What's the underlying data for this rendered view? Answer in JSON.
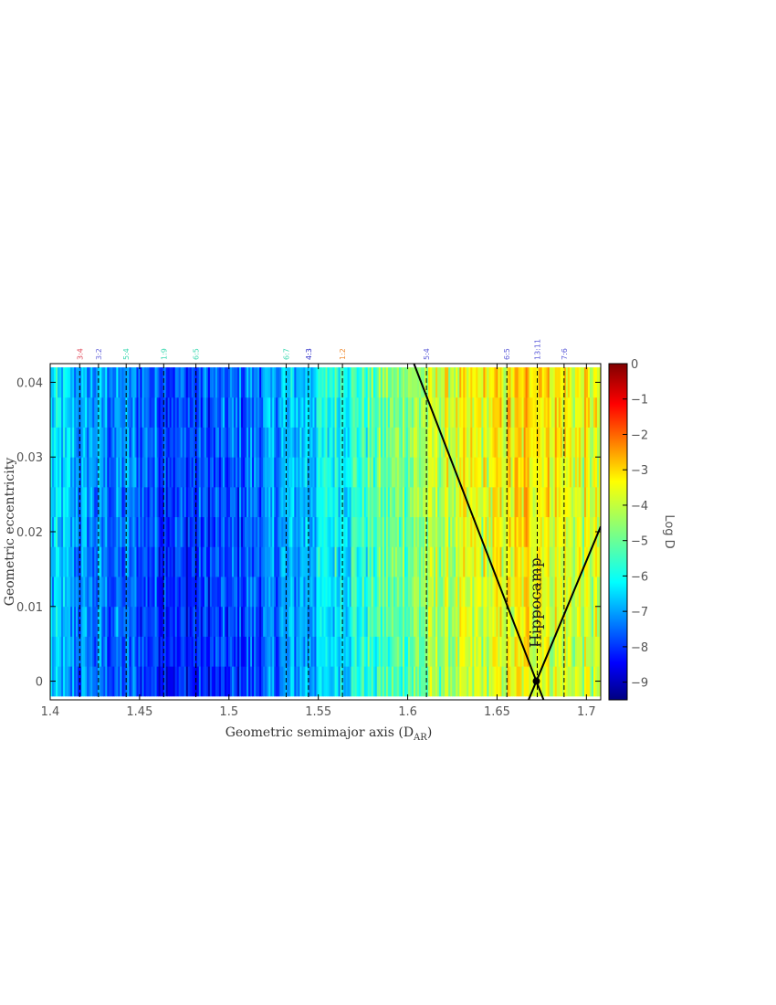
{
  "chart_data": {
    "type": "heatmap",
    "title": "",
    "xlabel": "Geometric semimajor axis (D",
    "xlabel_sub": "AR",
    "xlabel_close": ")",
    "ylabel": "Geometric eccentricity",
    "xlim": [
      1.4,
      1.708
    ],
    "ylim": [
      -0.0025,
      0.0425
    ],
    "x_ticks": [
      {
        "value": 1.4,
        "label": "1.4"
      },
      {
        "value": 1.45,
        "label": "1.45"
      },
      {
        "value": 1.5,
        "label": "1.5"
      },
      {
        "value": 1.55,
        "label": "1.55"
      },
      {
        "value": 1.6,
        "label": "1.6"
      },
      {
        "value": 1.65,
        "label": "1.65"
      },
      {
        "value": 1.7,
        "label": "1.7"
      }
    ],
    "y_ticks": [
      {
        "value": 0,
        "label": "0"
      },
      {
        "value": 0.01,
        "label": "0.01"
      },
      {
        "value": 0.02,
        "label": "0.02"
      },
      {
        "value": 0.03,
        "label": "0.03"
      },
      {
        "value": 0.04,
        "label": "0.04"
      }
    ],
    "eccentricity_rows": [
      0,
      0.004,
      0.008,
      0.012,
      0.016,
      0.02,
      0.024,
      0.028,
      0.032,
      0.036,
      0.04
    ],
    "colorbar": {
      "label": "Log D",
      "range": [
        -9.5,
        0
      ],
      "ticks": [
        {
          "value": 0,
          "label": "0"
        },
        {
          "value": -1,
          "label": "−1"
        },
        {
          "value": -2,
          "label": "−2"
        },
        {
          "value": -3,
          "label": "−3"
        },
        {
          "value": -4,
          "label": "−4"
        },
        {
          "value": -5,
          "label": "−5"
        },
        {
          "value": -6,
          "label": "−6"
        },
        {
          "value": -7,
          "label": "−7"
        },
        {
          "value": -8,
          "label": "−8"
        },
        {
          "value": -9,
          "label": "−9"
        }
      ]
    },
    "log_d_profile": [
      {
        "a": 1.4,
        "log_d": -6.7
      },
      {
        "a": 1.42,
        "log_d": -7.3
      },
      {
        "a": 1.44,
        "log_d": -7.5
      },
      {
        "a": 1.46,
        "log_d": -7.8
      },
      {
        "a": 1.48,
        "log_d": -8.1
      },
      {
        "a": 1.5,
        "log_d": -8.0
      },
      {
        "a": 1.52,
        "log_d": -7.5
      },
      {
        "a": 1.54,
        "log_d": -6.8
      },
      {
        "a": 1.56,
        "log_d": -6.1
      },
      {
        "a": 1.58,
        "log_d": -5.6
      },
      {
        "a": 1.6,
        "log_d": -5.0
      },
      {
        "a": 1.62,
        "log_d": -4.5
      },
      {
        "a": 1.64,
        "log_d": -4.2
      },
      {
        "a": 1.66,
        "log_d": -3.9
      },
      {
        "a": 1.67,
        "log_d": -3.5
      },
      {
        "a": 1.68,
        "log_d": -3.8
      },
      {
        "a": 1.7,
        "log_d": -4.3
      }
    ],
    "resonances": [
      {
        "a": 1.4165,
        "label": "3:4",
        "color": "#e04a5a"
      },
      {
        "a": 1.427,
        "label": "3:2",
        "color": "#6a6adc"
      },
      {
        "a": 1.4425,
        "label": "5:4",
        "color": "#3ad8b0"
      },
      {
        "a": 1.4635,
        "label": "1:9",
        "color": "#3ad8b0"
      },
      {
        "a": 1.4815,
        "label": "6:5",
        "color": "#3ad8b0"
      },
      {
        "a": 1.532,
        "label": "6:7",
        "color": "#3ad8b0"
      },
      {
        "a": 1.5445,
        "label": "4:3",
        "color": "#2a2ac8"
      },
      {
        "a": 1.5635,
        "label": "1:2",
        "color": "#f0903a"
      },
      {
        "a": 1.6105,
        "label": "5:4",
        "color": "#5a5ad8"
      },
      {
        "a": 1.6555,
        "label": "6:5",
        "color": "#5a5ad8"
      },
      {
        "a": 1.6725,
        "label": "13:11",
        "color": "#5a5ad8"
      },
      {
        "a": 1.6875,
        "label": "7:6",
        "color": "#5a5ad8"
      }
    ],
    "hippocamp_lines": [
      {
        "from": [
          1.672,
          0
        ],
        "to": [
          1.6035,
          0.0425
        ]
      },
      {
        "from": [
          1.672,
          0
        ],
        "to": [
          1.708,
          0.0207
        ]
      }
    ],
    "hippocamp_point": {
      "a": 1.672,
      "e": 0
    },
    "annotation": {
      "text": "Hippocamp",
      "a": 1.6745,
      "e": 0.0105
    }
  }
}
